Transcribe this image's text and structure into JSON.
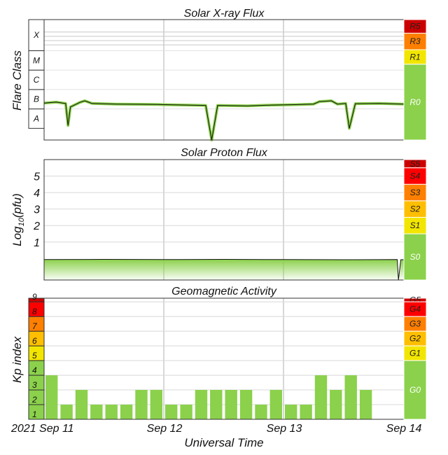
{
  "chart_data": [
    {
      "type": "line",
      "title": "Solar X-ray Flux",
      "ylabel": "Flare Class",
      "y_scale": "log",
      "y_ticks": [
        {
          "label": "A",
          "exp": -8
        },
        {
          "label": "B",
          "exp": -7
        },
        {
          "label": "C",
          "exp": -6
        },
        {
          "label": "M",
          "exp": -5
        },
        {
          "label": "X",
          "exp": -4
        }
      ],
      "ylim_exp": [
        -8.6,
        -2.4
      ],
      "x_range_days": [
        0,
        3.25
      ],
      "series": [
        {
          "color": "#8bd14b",
          "points": [
            [
              0.0,
              -6.7
            ],
            [
              0.1,
              -6.65
            ],
            [
              0.18,
              -6.72
            ],
            [
              0.2,
              -7.85
            ],
            [
              0.22,
              -6.9
            ],
            [
              0.3,
              -6.66
            ],
            [
              0.34,
              -6.58
            ],
            [
              0.4,
              -6.72
            ],
            [
              0.6,
              -6.75
            ],
            [
              0.8,
              -6.76
            ],
            [
              0.95,
              -6.77
            ],
            [
              1.0,
              -6.78
            ],
            [
              1.2,
              -6.8
            ],
            [
              1.35,
              -6.82
            ],
            [
              1.4,
              -8.6
            ],
            [
              1.45,
              -6.82
            ],
            [
              1.7,
              -6.84
            ],
            [
              1.9,
              -6.8
            ],
            [
              2.1,
              -6.78
            ],
            [
              2.25,
              -6.75
            ],
            [
              2.3,
              -6.62
            ],
            [
              2.4,
              -6.58
            ],
            [
              2.45,
              -6.75
            ],
            [
              2.52,
              -6.72
            ],
            [
              2.55,
              -8.0
            ],
            [
              2.6,
              -6.73
            ],
            [
              2.8,
              -6.72
            ],
            [
              3.0,
              -6.75
            ],
            [
              3.1,
              -6.68
            ],
            [
              3.15,
              -6.8
            ]
          ]
        }
      ],
      "scale_levels": [
        "R5",
        "R3",
        "R1",
        "R0"
      ],
      "scale_colors": [
        "#cc0000",
        "#ff7f00",
        "#f2e600",
        "#8bd14b"
      ]
    },
    {
      "type": "area",
      "title": "Solar Proton Flux",
      "ylabel": "Log10(pfu)",
      "y_ticks": [
        1,
        2,
        3,
        4,
        5
      ],
      "ylim": [
        -1.3,
        6
      ],
      "x_range_days": [
        0,
        3.25
      ],
      "series": [
        {
          "color": "#8bd14b",
          "points": [
            [
              0.0,
              -0.06
            ],
            [
              0.5,
              -0.05
            ],
            [
              1.0,
              -0.06
            ],
            [
              1.5,
              -0.05
            ],
            [
              2.0,
              -0.06
            ],
            [
              2.5,
              -0.07
            ],
            [
              2.95,
              -0.06
            ],
            [
              2.96,
              -1.3
            ],
            [
              2.98,
              -0.07
            ],
            [
              3.15,
              -0.06
            ]
          ]
        }
      ],
      "scale_levels": [
        "S5",
        "S4",
        "S3",
        "S2",
        "S1",
        "S0"
      ],
      "scale_colors": [
        "#cc0000",
        "#ff0000",
        "#ff7f00",
        "#ffbf00",
        "#f2e600",
        "#8bd14b"
      ]
    },
    {
      "type": "bar",
      "title": "Geomagnetic Activity",
      "ylabel": "Kp index",
      "xlabel": "Universal Time",
      "ylim": [
        0,
        8
      ],
      "y_ticks": [
        1,
        2,
        3,
        4,
        5,
        6,
        7,
        8,
        9
      ],
      "x_tick_labels": [
        "2021 Sep 11",
        "Sep 12",
        "Sep 13",
        "Sep 14"
      ],
      "bar_width_hours": 3,
      "values": [
        3.0,
        1.0,
        2.0,
        1.0,
        1.0,
        1.0,
        2.0,
        2.0,
        1.0,
        1.0,
        2.0,
        2.0,
        2.0,
        2.0,
        1.0,
        2.0,
        1.0,
        1.0,
        3.0,
        2.0,
        3.0,
        2.0
      ],
      "bar_color": "#8bd14b",
      "scale_levels": [
        "G5",
        "G4",
        "G3",
        "G2",
        "G1",
        "G0"
      ],
      "scale_colors": [
        "#cc0000",
        "#ff0000",
        "#ff7f00",
        "#ffbf00",
        "#f2e600",
        "#8bd14b"
      ],
      "kp_colors": [
        "#8bd14b",
        "#8bd14b",
        "#8bd14b",
        "#8bd14b",
        "#f2e600",
        "#ffbf00",
        "#ff7f00",
        "#ff0000",
        "#cc0000"
      ]
    }
  ]
}
